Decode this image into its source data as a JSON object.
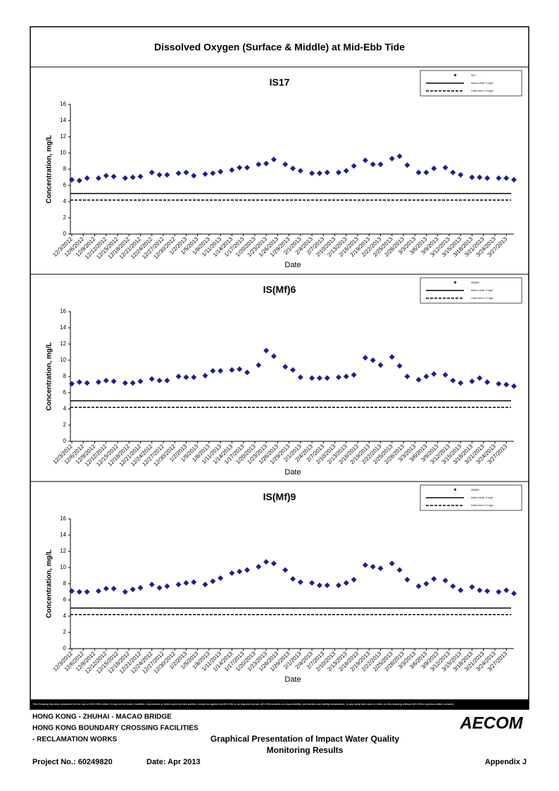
{
  "title": "Dissolved Oxygen (Surface & Middle) at Mid-Ebb Tide",
  "chart_data": [
    {
      "type": "scatter",
      "title": "IS17",
      "x_label": "Date",
      "y_label": "Concentration, mg/L",
      "x": [
        "12/3/2012",
        "12/5/2012",
        "12/7/2012",
        "12/10/2012",
        "12/12/2012",
        "12/14/2012",
        "12/17/2012",
        "12/19/2012",
        "12/21/2012",
        "12/24/2012",
        "12/26/2012",
        "12/28/2012",
        "12/31/2012",
        "1/2/2013",
        "1/4/2013",
        "1/7/2013",
        "1/9/2013",
        "1/11/2013",
        "1/14/2013",
        "1/16/2013",
        "1/18/2013",
        "1/21/2013",
        "1/23/2013",
        "1/25/2013",
        "1/28/2013",
        "1/30/2013",
        "2/1/2013",
        "2/4/2013",
        "2/6/2013",
        "2/8/2013",
        "2/11/2013",
        "2/13/2013",
        "2/15/2013",
        "2/18/2013",
        "2/20/2013",
        "2/22/2013",
        "2/25/2013",
        "2/27/2013",
        "3/1/2013",
        "3/4/2013",
        "3/6/2013",
        "3/8/2013",
        "3/11/2013",
        "3/13/2013",
        "3/15/2013",
        "3/18/2013",
        "3/20/2013",
        "3/22/2013",
        "3/25/2013",
        "3/27/2013",
        "3/29/2013"
      ],
      "series": [
        {
          "name": "IS17",
          "color": "#1f1f8f",
          "values": [
            6.7,
            6.6,
            6.9,
            6.9,
            7.2,
            7.1,
            6.9,
            7.0,
            7.1,
            7.6,
            7.3,
            7.3,
            7.5,
            7.6,
            7.2,
            7.4,
            7.5,
            7.7,
            7.9,
            8.2,
            8.2,
            8.6,
            8.7,
            9.2,
            8.6,
            8.1,
            7.8,
            7.5,
            7.5,
            7.6,
            7.6,
            7.8,
            8.4,
            9.1,
            8.6,
            8.6,
            9.3,
            9.6,
            8.5,
            7.6,
            7.6,
            8.1,
            8.2,
            7.6,
            7.3,
            7.0,
            7.0,
            6.9,
            6.9,
            6.9,
            6.7
          ]
        }
      ],
      "reference_lines": [
        {
          "name": "Action Level: 5 mg/L",
          "value": 5,
          "style": "solid"
        },
        {
          "name": "Limit Level: 4.2 mg/L",
          "value": 4.2,
          "style": "dashed"
        }
      ],
      "xlim": [
        "12/3/2012",
        "3/29/2013"
      ],
      "xticks": [
        "12/3/2012",
        "12/6/2012",
        "12/9/2012",
        "12/12/2012",
        "12/15/2012",
        "12/18/2012",
        "12/21/2012",
        "12/24/2012",
        "12/27/2012",
        "12/30/2012",
        "1/2/2013",
        "1/5/2013",
        "1/8/2013",
        "1/11/2013",
        "1/14/2013",
        "1/17/2013",
        "1/20/2013",
        "1/23/2013",
        "1/26/2013",
        "1/29/2013",
        "2/1/2013",
        "2/4/2013",
        "2/7/2013",
        "2/10/2013",
        "2/13/2013",
        "2/16/2013",
        "2/19/2013",
        "2/22/2013",
        "2/25/2013",
        "2/28/2013",
        "3/3/2013",
        "3/6/2013",
        "3/9/2013",
        "3/12/2013",
        "3/15/2013",
        "3/18/2013",
        "3/21/2013",
        "3/24/2013",
        "3/27/2013"
      ],
      "ylim": [
        0,
        16
      ],
      "yticks": [
        0,
        2,
        4,
        6,
        8,
        10,
        12,
        14,
        16
      ]
    },
    {
      "type": "scatter",
      "title": "IS(Mf)6",
      "x_label": "Date",
      "y_label": "Concentration, mg/L",
      "x": [
        "12/3/2012",
        "12/5/2012",
        "12/7/2012",
        "12/10/2012",
        "12/12/2012",
        "12/14/2012",
        "12/17/2012",
        "12/19/2012",
        "12/21/2012",
        "12/24/2012",
        "12/26/2012",
        "12/28/2012",
        "12/31/2012",
        "1/2/2013",
        "1/4/2013",
        "1/7/2013",
        "1/9/2013",
        "1/11/2013",
        "1/14/2013",
        "1/16/2013",
        "1/18/2013",
        "1/21/2013",
        "1/23/2013",
        "1/25/2013",
        "1/28/2013",
        "1/30/2013",
        "2/1/2013",
        "2/4/2013",
        "2/6/2013",
        "2/8/2013",
        "2/11/2013",
        "2/13/2013",
        "2/15/2013",
        "2/18/2013",
        "2/20/2013",
        "2/22/2013",
        "2/25/2013",
        "2/27/2013",
        "3/1/2013",
        "3/4/2013",
        "3/6/2013",
        "3/8/2013",
        "3/11/2013",
        "3/13/2013",
        "3/15/2013",
        "3/18/2013",
        "3/20/2013",
        "3/22/2013",
        "3/25/2013",
        "3/27/2013",
        "3/29/2013"
      ],
      "series": [
        {
          "name": "IS(Mf)6",
          "color": "#1f1f8f",
          "values": [
            7.1,
            7.3,
            7.2,
            7.3,
            7.5,
            7.4,
            7.2,
            7.2,
            7.4,
            7.7,
            7.5,
            7.5,
            8.0,
            7.9,
            7.9,
            8.1,
            8.7,
            8.7,
            8.8,
            8.9,
            8.5,
            9.4,
            11.2,
            10.5,
            9.2,
            8.8,
            7.9,
            7.8,
            7.8,
            7.8,
            7.9,
            8.0,
            8.2,
            10.3,
            10.0,
            9.4,
            10.4,
            9.3,
            8.0,
            7.6,
            8.0,
            8.3,
            8.2,
            7.5,
            7.2,
            7.4,
            7.8,
            7.3,
            7.1,
            7.0,
            6.8
          ]
        }
      ],
      "reference_lines": [
        {
          "name": "Action Level: 5 mg/L",
          "value": 5,
          "style": "solid"
        },
        {
          "name": "Limit Level: 4.2 mg/L",
          "value": 4.2,
          "style": "dashed"
        }
      ],
      "xlim": [
        "12/3/2012",
        "3/29/2013"
      ],
      "xticks": [
        "12/3/2012",
        "12/6/2012",
        "12/9/2012",
        "12/12/2012",
        "12/15/2012",
        "12/18/2012",
        "12/21/2012",
        "12/24/2012",
        "12/27/2012",
        "12/30/2012",
        "1/2/2013",
        "1/5/2013",
        "1/8/2013",
        "1/11/2013",
        "1/14/2013",
        "1/17/2013",
        "1/20/2013",
        "1/23/2013",
        "1/26/2013",
        "1/29/2013",
        "2/1/2013",
        "2/4/2013",
        "2/7/2013",
        "2/10/2013",
        "2/13/2013",
        "2/16/2013",
        "2/19/2013",
        "2/22/2013",
        "2/25/2013",
        "2/28/2013",
        "3/3/2013",
        "3/6/2013",
        "3/9/2013",
        "3/12/2013",
        "3/15/2013",
        "3/18/2013",
        "3/21/2013",
        "3/24/2013",
        "3/27/2013"
      ],
      "ylim": [
        0,
        16
      ],
      "yticks": [
        0,
        2,
        4,
        6,
        8,
        10,
        12,
        14,
        16
      ]
    },
    {
      "type": "scatter",
      "title": "IS(Mf)9",
      "x_label": "Date",
      "y_label": "Concentration, mg/L",
      "x": [
        "12/3/2012",
        "12/5/2012",
        "12/7/2012",
        "12/10/2012",
        "12/12/2012",
        "12/14/2012",
        "12/17/2012",
        "12/19/2012",
        "12/21/2012",
        "12/24/2012",
        "12/26/2012",
        "12/28/2012",
        "12/31/2012",
        "1/2/2013",
        "1/4/2013",
        "1/7/2013",
        "1/9/2013",
        "1/11/2013",
        "1/14/2013",
        "1/16/2013",
        "1/18/2013",
        "1/21/2013",
        "1/23/2013",
        "1/25/2013",
        "1/28/2013",
        "1/30/2013",
        "2/1/2013",
        "2/4/2013",
        "2/6/2013",
        "2/8/2013",
        "2/11/2013",
        "2/13/2013",
        "2/15/2013",
        "2/18/2013",
        "2/20/2013",
        "2/22/2013",
        "2/25/2013",
        "2/27/2013",
        "3/1/2013",
        "3/4/2013",
        "3/6/2013",
        "3/8/2013",
        "3/11/2013",
        "3/13/2013",
        "3/15/2013",
        "3/18/2013",
        "3/20/2013",
        "3/22/2013",
        "3/25/2013",
        "3/27/2013",
        "3/29/2013"
      ],
      "series": [
        {
          "name": "IS(Mf)9",
          "color": "#1f1f8f",
          "values": [
            7.1,
            7.0,
            7.0,
            7.1,
            7.4,
            7.4,
            7.0,
            7.3,
            7.5,
            7.9,
            7.5,
            7.7,
            7.9,
            8.1,
            8.2,
            7.9,
            8.3,
            8.7,
            9.3,
            9.5,
            9.7,
            10.1,
            10.7,
            10.5,
            9.7,
            8.6,
            8.2,
            8.1,
            7.8,
            7.8,
            7.8,
            8.1,
            8.5,
            10.3,
            10.1,
            9.9,
            10.5,
            9.7,
            8.5,
            7.7,
            8.0,
            8.6,
            8.4,
            7.7,
            7.2,
            7.6,
            7.2,
            7.1,
            7.0,
            7.2,
            6.8
          ]
        }
      ],
      "reference_lines": [
        {
          "name": "Action Level: 5 mg/L",
          "value": 5,
          "style": "solid"
        },
        {
          "name": "Limit Level: 4.2 mg/L",
          "value": 4.2,
          "style": "dashed"
        }
      ],
      "xlim": [
        "12/3/2012",
        "3/29/2013"
      ],
      "xticks": [
        "12/3/2012",
        "12/6/2012",
        "12/9/2012",
        "12/12/2012",
        "12/15/2012",
        "12/18/2012",
        "12/21/2012",
        "12/24/2012",
        "12/27/2012",
        "12/30/2012",
        "1/2/2013",
        "1/5/2013",
        "1/8/2013",
        "1/11/2013",
        "1/14/2013",
        "1/17/2013",
        "1/20/2013",
        "1/23/2013",
        "1/26/2013",
        "1/29/2013",
        "2/1/2013",
        "2/4/2013",
        "2/7/2013",
        "2/10/2013",
        "2/13/2013",
        "2/16/2013",
        "2/19/2013",
        "2/22/2013",
        "2/25/2013",
        "2/28/2013",
        "3/3/2013",
        "3/6/2013",
        "3/9/2013",
        "3/12/2013",
        "3/15/2013",
        "3/18/2013",
        "3/21/2013",
        "3/24/2013",
        "3/27/2013"
      ],
      "ylim": [
        0,
        16
      ],
      "yticks": [
        0,
        2,
        4,
        6,
        8,
        10,
        12,
        14,
        16
      ]
    }
  ],
  "footer": {
    "disclaimer": "This Drawing has been prepared for the use of AECOM's client. It may not be used, modified, reproduced or relied upon by third parties, except as agreed by AECOM or as required by law. AECOM accepts no responsibility, and denies any liability whatsoever, to any party that uses or relies on this drawing without AECOM's express written consent.",
    "project_lines": [
      "HONG KONG - ZHUHAI - MACAO BRIDGE",
      "HONG KONG BOUNDARY CROSSING FACILITIES",
      "- RECLAMATION WORKS"
    ],
    "logo": "AECOM",
    "report_title": [
      "Graphical Presentation of Impact Water Quality",
      "Monitoring Results"
    ],
    "project_no": "Project No.: 60249820",
    "date": "Date: Apr 2013",
    "appendix": "Appendix J"
  }
}
